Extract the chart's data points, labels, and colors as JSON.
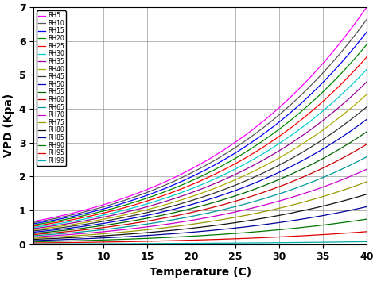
{
  "rh_levels": [
    5,
    10,
    15,
    20,
    25,
    30,
    35,
    40,
    45,
    50,
    55,
    60,
    65,
    70,
    75,
    80,
    85,
    90,
    95,
    99
  ],
  "colors": [
    "#ff00ff",
    "#555555",
    "#0000ff",
    "#008800",
    "#ff0000",
    "#00cccc",
    "#990099",
    "#aaaa00",
    "#333333",
    "#0000cc",
    "#006600",
    "#cc0000",
    "#009999",
    "#cc00cc",
    "#999900",
    "#111111",
    "#000099",
    "#007700",
    "#dd0000",
    "#00aaaa"
  ],
  "t_min": 2,
  "t_max": 40,
  "ylim": [
    0,
    7
  ],
  "xlim": [
    2,
    40
  ],
  "xlabel": "Temperature (C)",
  "ylabel": "VPD (Kpa)",
  "xticks": [
    5,
    10,
    15,
    20,
    25,
    30,
    35,
    40
  ],
  "yticks": [
    0,
    1,
    2,
    3,
    4,
    5,
    6,
    7
  ]
}
